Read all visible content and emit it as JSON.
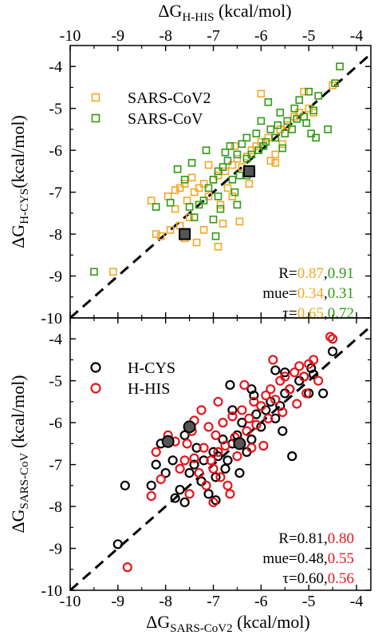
{
  "colors": {
    "orange": "#f5a623",
    "green": "#2e9a12",
    "black": "#000000",
    "red": "#e8141c"
  },
  "top_axis": {
    "prefix": "ΔG",
    "sub": "H-HIS",
    "suffix": " (kcal/mol)"
  },
  "bottom_axis": {
    "prefix": "ΔG",
    "sub": "SARS-CoV2",
    "suffix": " (kcal/mol)"
  },
  "chart_data": [
    {
      "type": "scatter",
      "panel": "top",
      "xlim": [
        -10,
        -3.7
      ],
      "ylim": [
        -10,
        -3.5
      ],
      "xticks": [
        "-10",
        "-9",
        "-8",
        "-7",
        "-6",
        "-5",
        "-4"
      ],
      "yticks": [
        "-10",
        "-9",
        "-8",
        "-7",
        "-6",
        "-5",
        "-4"
      ],
      "ylabel": {
        "prefix": "ΔG",
        "sub": "H-CYS",
        "suffix": "(kcal/mol)"
      },
      "diagonal": true,
      "legend_placement": "top-left",
      "stats": [
        {
          "label": "R=",
          "v1": "0.87",
          "sep": ",",
          "v2": "0.91"
        },
        {
          "label": "mue=",
          "v1": "0.34",
          "sep": ",",
          "v2": "0.31"
        },
        {
          "label": "τ=",
          "v1": "0.65",
          "sep": ",",
          "v2": "0.72"
        }
      ],
      "stats_colors": [
        "orange",
        "green"
      ],
      "series": [
        {
          "name": "SARS-CoV2",
          "color": "orange",
          "marker": "square",
          "points": [
            [
              -9.1,
              -8.9
            ],
            [
              -8.2,
              -8.0
            ],
            [
              -8.1,
              -8.05
            ],
            [
              -7.9,
              -7.9
            ],
            [
              -7.7,
              -7.8
            ],
            [
              -7.6,
              -8.1
            ],
            [
              -7.35,
              -8.2
            ],
            [
              -7.5,
              -7.6
            ],
            [
              -7.8,
              -7.4
            ],
            [
              -7.95,
              -7.1
            ],
            [
              -7.8,
              -6.95
            ],
            [
              -7.7,
              -6.9
            ],
            [
              -7.6,
              -6.8
            ],
            [
              -7.55,
              -7.2
            ],
            [
              -7.4,
              -7.0
            ],
            [
              -7.3,
              -6.9
            ],
            [
              -7.2,
              -6.8
            ],
            [
              -7.1,
              -7.1
            ],
            [
              -7.0,
              -6.7
            ],
            [
              -6.9,
              -6.6
            ],
            [
              -6.85,
              -7.3
            ],
            [
              -6.75,
              -6.5
            ],
            [
              -6.6,
              -6.35
            ],
            [
              -6.5,
              -6.2
            ],
            [
              -6.4,
              -6.4
            ],
            [
              -6.3,
              -6.15
            ],
            [
              -6.2,
              -6.0
            ],
            [
              -6.1,
              -5.9
            ],
            [
              -6.0,
              -5.8
            ],
            [
              -5.85,
              -5.7
            ],
            [
              -5.7,
              -6.1
            ],
            [
              -5.6,
              -5.5
            ],
            [
              -5.45,
              -5.4
            ],
            [
              -5.3,
              -5.2
            ],
            [
              -5.2,
              -5.1
            ],
            [
              -5.0,
              -5.0
            ],
            [
              -5.1,
              -4.6
            ],
            [
              -4.9,
              -5.1
            ],
            [
              -6.0,
              -4.65
            ],
            [
              -5.8,
              -6.25
            ],
            [
              -6.8,
              -7.75
            ],
            [
              -7.2,
              -7.9
            ],
            [
              -6.9,
              -8.3
            ],
            [
              -6.45,
              -7.7
            ],
            [
              -7.1,
              -6.35
            ],
            [
              -6.55,
              -5.9
            ],
            [
              -7.45,
              -6.65
            ],
            [
              -8.3,
              -7.2
            ],
            [
              -6.7,
              -6.9
            ],
            [
              -6.25,
              -6.8
            ],
            [
              -5.55,
              -5.85
            ],
            [
              -4.5,
              -4.45
            ],
            [
              -5.7,
              -6.3
            ],
            [
              -6.6,
              -7.1
            ]
          ]
        },
        {
          "name": "SARS-CoV",
          "color": "green",
          "marker": "square",
          "points": [
            [
              -9.5,
              -8.9
            ],
            [
              -8.2,
              -7.35
            ],
            [
              -7.9,
              -7.25
            ],
            [
              -7.75,
              -6.45
            ],
            [
              -7.6,
              -6.7
            ],
            [
              -7.45,
              -6.3
            ],
            [
              -7.5,
              -7.35
            ],
            [
              -7.4,
              -7.6
            ],
            [
              -7.3,
              -7.3
            ],
            [
              -7.2,
              -7.2
            ],
            [
              -7.1,
              -6.9
            ],
            [
              -7.0,
              -6.7
            ],
            [
              -7.0,
              -7.65
            ],
            [
              -6.95,
              -8.05
            ],
            [
              -6.9,
              -6.5
            ],
            [
              -6.85,
              -7.4
            ],
            [
              -6.8,
              -6.4
            ],
            [
              -6.7,
              -6.25
            ],
            [
              -6.65,
              -5.9
            ],
            [
              -6.6,
              -6.7
            ],
            [
              -6.5,
              -6.1
            ],
            [
              -6.5,
              -7.3
            ],
            [
              -6.45,
              -6.6
            ],
            [
              -6.4,
              -5.85
            ],
            [
              -6.3,
              -5.7
            ],
            [
              -6.3,
              -6.2
            ],
            [
              -6.2,
              -6.1
            ],
            [
              -6.2,
              -6.55
            ],
            [
              -6.1,
              -5.6
            ],
            [
              -6.05,
              -6.0
            ],
            [
              -6.0,
              -5.3
            ],
            [
              -5.95,
              -5.9
            ],
            [
              -5.9,
              -5.8
            ],
            [
              -5.8,
              -5.5
            ],
            [
              -5.7,
              -5.7
            ],
            [
              -5.65,
              -5.4
            ],
            [
              -5.6,
              -5.1
            ],
            [
              -5.55,
              -5.95
            ],
            [
              -5.5,
              -5.6
            ],
            [
              -5.45,
              -5.3
            ],
            [
              -5.35,
              -5.5
            ],
            [
              -5.3,
              -5.0
            ],
            [
              -5.25,
              -5.25
            ],
            [
              -5.2,
              -4.8
            ],
            [
              -5.1,
              -5.2
            ],
            [
              -5.05,
              -5.35
            ],
            [
              -5.0,
              -4.6
            ],
            [
              -4.95,
              -5.6
            ],
            [
              -4.9,
              -5.05
            ],
            [
              -4.8,
              -4.7
            ],
            [
              -4.85,
              -5.7
            ],
            [
              -4.6,
              -5.5
            ],
            [
              -4.45,
              -4.4
            ],
            [
              -4.35,
              -4.0
            ],
            [
              -6.55,
              -7.0
            ],
            [
              -6.9,
              -7.1
            ],
            [
              -6.3,
              -6.6
            ],
            [
              -6.75,
              -6.05
            ],
            [
              -7.15,
              -6.0
            ],
            [
              -5.85,
              -4.85
            ]
          ]
        }
      ],
      "highlights": [
        [
          -7.6,
          -8.0
        ],
        [
          -6.25,
          -6.5
        ]
      ]
    },
    {
      "type": "scatter",
      "panel": "bottom",
      "xlim": [
        -10,
        -3.7
      ],
      "ylim": [
        -10,
        -3.5
      ],
      "xticks": [
        "-10",
        "-9",
        "-8",
        "-7",
        "-6",
        "-5",
        "-4"
      ],
      "yticks": [
        "-10",
        "-9",
        "-8",
        "-7",
        "-6",
        "-5",
        "-4"
      ],
      "ylabel": {
        "prefix": "ΔG",
        "sub": "SARS-CoV",
        "suffix": " (kcal/mol)"
      },
      "diagonal": true,
      "legend_placement": "top-left",
      "stats": [
        {
          "label": "R=",
          "v1": "0.81",
          "sep": ",",
          "v2": "0.80"
        },
        {
          "label": "mue=",
          "v1": "0.48",
          "sep": ",",
          "v2": "0.55"
        },
        {
          "label": "τ=",
          "v1": "0.60",
          "sep": ",",
          "v2": "0.56"
        }
      ],
      "stats_colors": [
        "black",
        "red"
      ],
      "series": [
        {
          "name": "H-CYS",
          "color": "black",
          "marker": "circle",
          "points": [
            [
              -9.0,
              -8.9
            ],
            [
              -8.85,
              -7.5
            ],
            [
              -8.3,
              -7.5
            ],
            [
              -8.2,
              -7.0
            ],
            [
              -8.0,
              -7.2
            ],
            [
              -7.85,
              -6.9
            ],
            [
              -7.8,
              -7.8
            ],
            [
              -7.7,
              -7.6
            ],
            [
              -7.6,
              -7.9
            ],
            [
              -7.5,
              -7.2
            ],
            [
              -7.4,
              -7.0
            ],
            [
              -7.35,
              -6.6
            ],
            [
              -7.25,
              -7.4
            ],
            [
              -7.2,
              -6.9
            ],
            [
              -7.1,
              -7.7
            ],
            [
              -7.0,
              -6.7
            ],
            [
              -6.95,
              -7.3
            ],
            [
              -6.9,
              -6.8
            ],
            [
              -6.8,
              -6.4
            ],
            [
              -6.75,
              -7.1
            ],
            [
              -6.7,
              -6.9
            ],
            [
              -6.6,
              -6.5
            ],
            [
              -6.5,
              -6.3
            ],
            [
              -6.45,
              -7.2
            ],
            [
              -6.4,
              -6.0
            ],
            [
              -6.3,
              -6.7
            ],
            [
              -6.2,
              -6.4
            ],
            [
              -6.1,
              -5.8
            ],
            [
              -6.0,
              -6.1
            ],
            [
              -5.9,
              -5.7
            ],
            [
              -5.8,
              -5.5
            ],
            [
              -5.7,
              -5.9
            ],
            [
              -5.6,
              -5.6
            ],
            [
              -5.55,
              -6.2
            ],
            [
              -5.5,
              -5.3
            ],
            [
              -5.4,
              -5.2
            ],
            [
              -5.35,
              -6.8
            ],
            [
              -5.2,
              -5.0
            ],
            [
              -5.1,
              -4.9
            ],
            [
              -5.0,
              -5.3
            ],
            [
              -4.95,
              -4.7
            ],
            [
              -4.7,
              -5.3
            ],
            [
              -4.5,
              -4.3
            ],
            [
              -6.65,
              -5.1
            ],
            [
              -6.6,
              -5.7
            ],
            [
              -6.2,
              -5.2
            ],
            [
              -5.5,
              -4.8
            ],
            [
              -5.7,
              -4.75
            ],
            [
              -7.6,
              -6.3
            ],
            [
              -8.1,
              -6.5
            ],
            [
              -6.95,
              -7.85
            ],
            [
              -6.15,
              -5.35
            ],
            [
              -4.9,
              -4.85
            ]
          ]
        },
        {
          "name": "H-HIS",
          "color": "red",
          "marker": "circle",
          "points": [
            [
              -8.8,
              -9.45
            ],
            [
              -8.1,
              -7.35
            ],
            [
              -8.2,
              -6.7
            ],
            [
              -7.95,
              -6.3
            ],
            [
              -7.8,
              -6.45
            ],
            [
              -7.7,
              -7.1
            ],
            [
              -7.6,
              -6.9
            ],
            [
              -7.55,
              -6.5
            ],
            [
              -7.5,
              -7.7
            ],
            [
              -7.45,
              -6.2
            ],
            [
              -7.4,
              -6.85
            ],
            [
              -7.3,
              -7.2
            ],
            [
              -7.2,
              -6.6
            ],
            [
              -7.15,
              -7.5
            ],
            [
              -7.1,
              -6.1
            ],
            [
              -7.05,
              -6.9
            ],
            [
              -7.0,
              -7.9
            ],
            [
              -6.95,
              -6.3
            ],
            [
              -6.9,
              -6.7
            ],
            [
              -6.85,
              -7.3
            ],
            [
              -6.8,
              -6.0
            ],
            [
              -6.75,
              -6.55
            ],
            [
              -6.7,
              -7.5
            ],
            [
              -6.6,
              -5.85
            ],
            [
              -6.55,
              -6.35
            ],
            [
              -6.5,
              -6.8
            ],
            [
              -6.45,
              -6.45
            ],
            [
              -6.4,
              -5.7
            ],
            [
              -6.3,
              -6.2
            ],
            [
              -6.25,
              -5.9
            ],
            [
              -6.2,
              -6.6
            ],
            [
              -6.15,
              -5.5
            ],
            [
              -6.1,
              -6.05
            ],
            [
              -6.0,
              -5.6
            ],
            [
              -5.9,
              -5.35
            ],
            [
              -5.85,
              -5.9
            ],
            [
              -5.8,
              -5.2
            ],
            [
              -5.7,
              -5.45
            ],
            [
              -5.6,
              -5.0
            ],
            [
              -5.55,
              -5.75
            ],
            [
              -5.5,
              -4.9
            ],
            [
              -5.4,
              -5.2
            ],
            [
              -5.3,
              -4.8
            ],
            [
              -5.25,
              -5.55
            ],
            [
              -5.2,
              -4.65
            ],
            [
              -5.1,
              -4.9
            ],
            [
              -5.05,
              -5.3
            ],
            [
              -5.0,
              -4.6
            ],
            [
              -4.9,
              -4.5
            ],
            [
              -4.8,
              -5.0
            ],
            [
              -4.55,
              -3.95
            ],
            [
              -4.5,
              -4.0
            ],
            [
              -7.4,
              -5.95
            ],
            [
              -6.9,
              -5.5
            ],
            [
              -6.35,
              -5.1
            ],
            [
              -7.0,
              -7.1
            ],
            [
              -6.65,
              -7.7
            ],
            [
              -7.25,
              -5.7
            ],
            [
              -8.3,
              -7.75
            ],
            [
              -5.75,
              -4.5
            ],
            [
              -5.95,
              -6.55
            ]
          ]
        }
      ],
      "highlights": [
        [
          -7.95,
          -6.45
        ],
        [
          -7.5,
          -6.1
        ],
        [
          -6.45,
          -6.5
        ]
      ]
    }
  ]
}
